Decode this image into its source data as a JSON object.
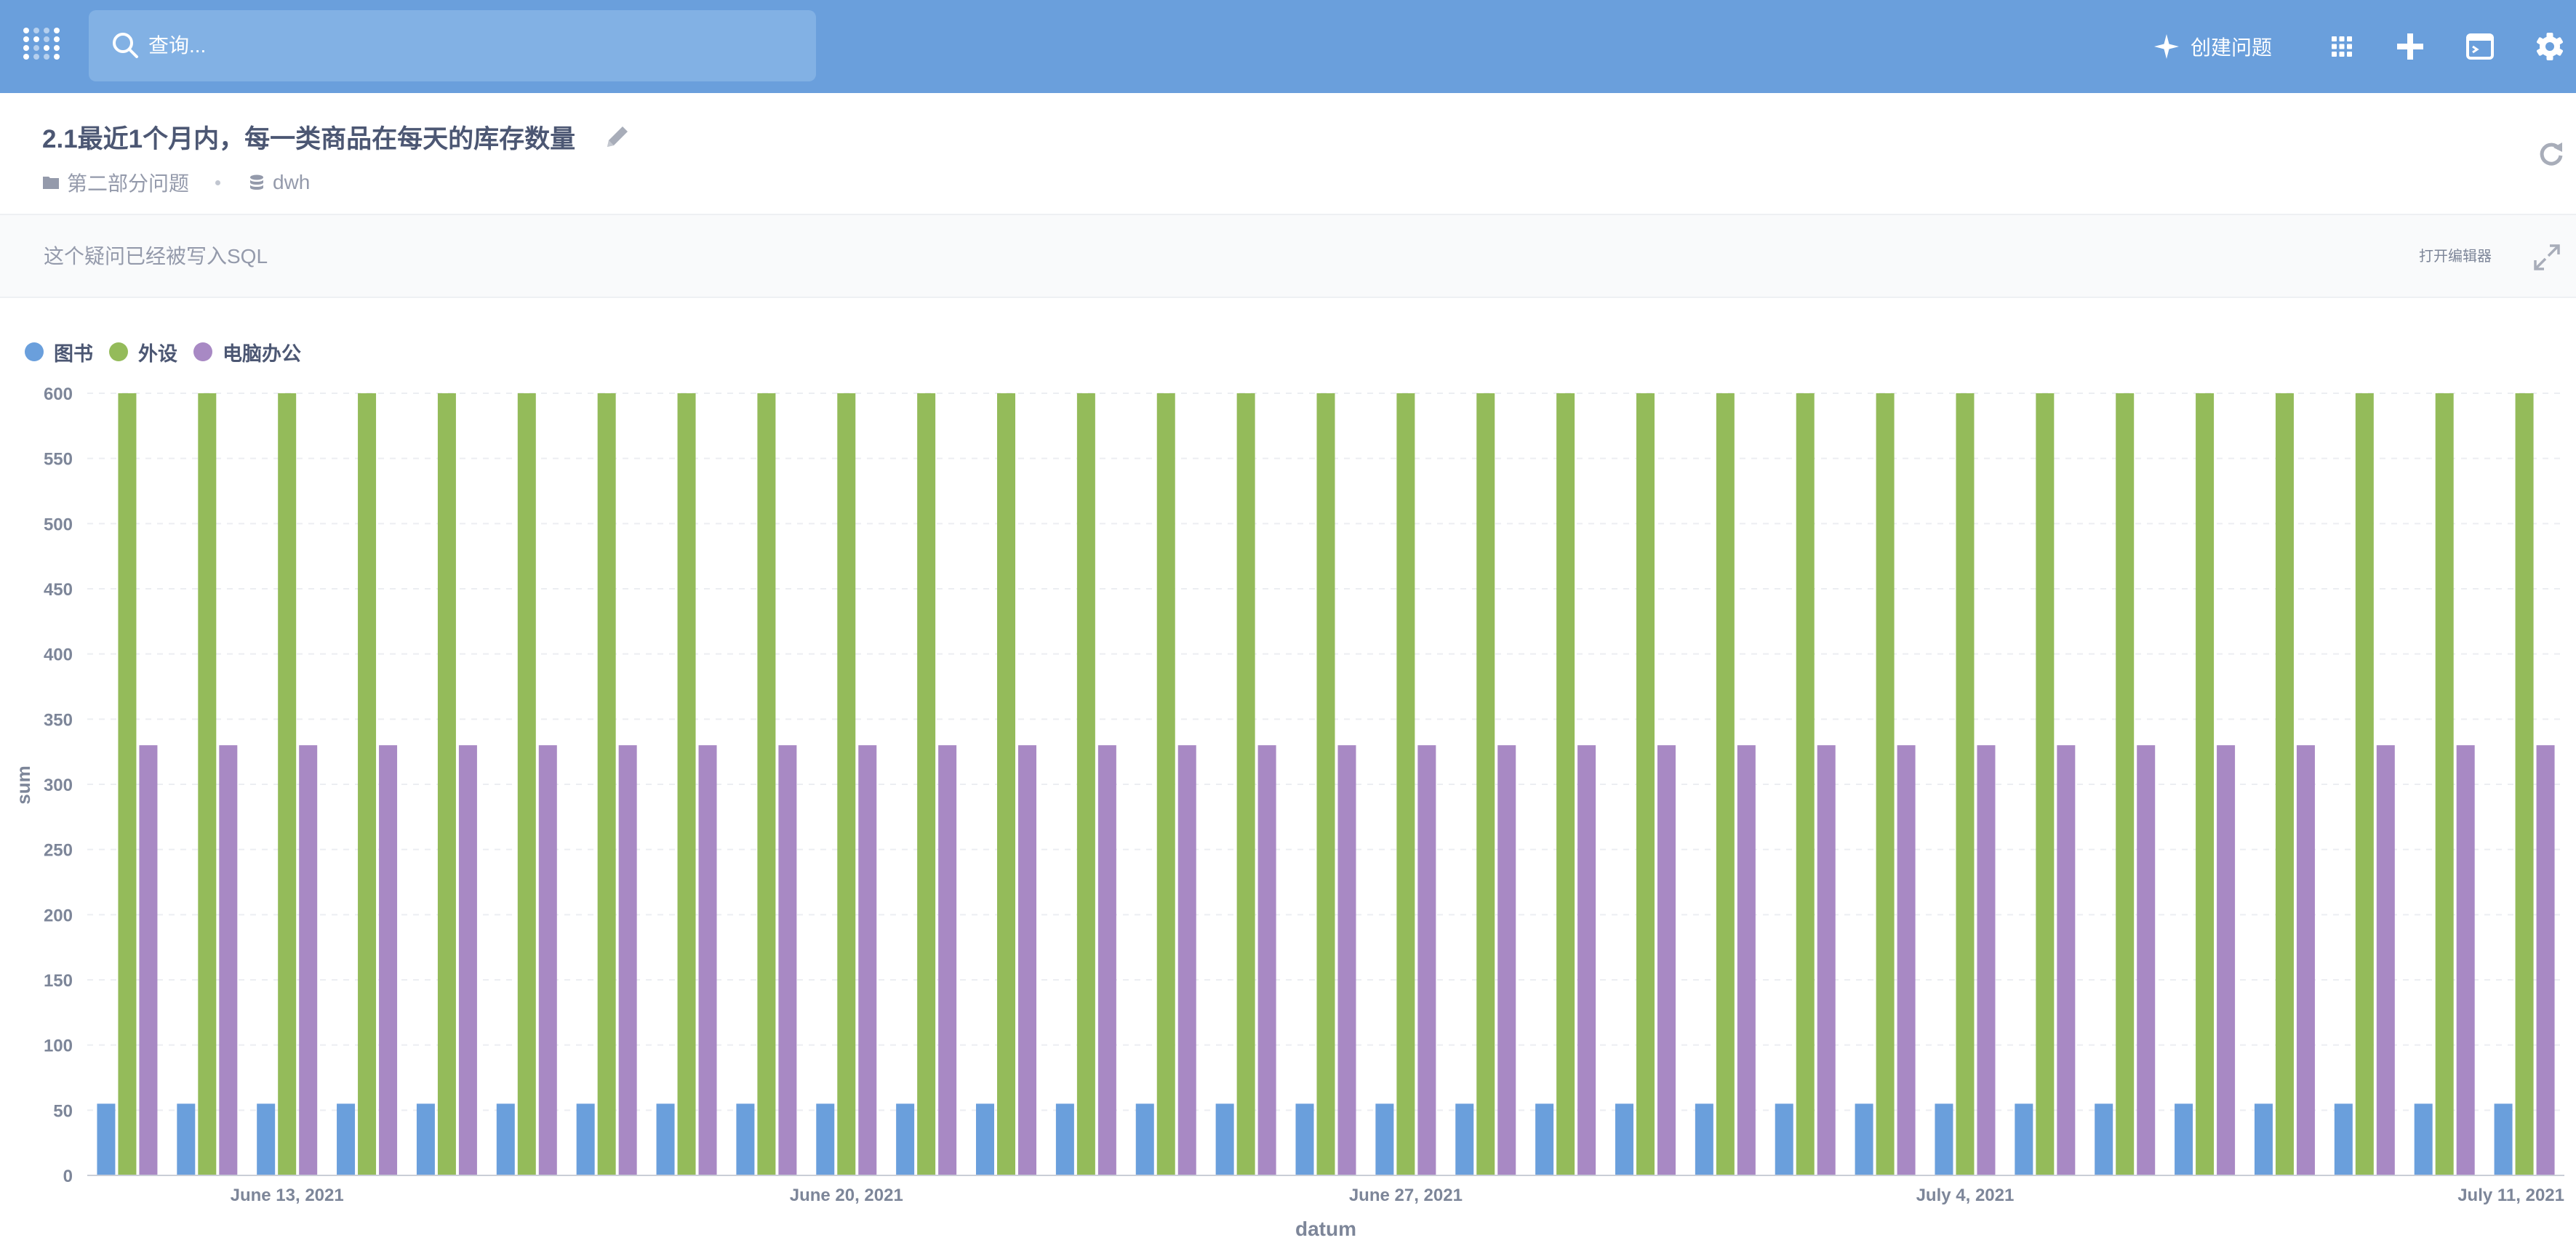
{
  "nav": {
    "search_placeholder": "查询...",
    "create_question_label": "创建问题"
  },
  "question": {
    "title": "2.1最近1个月内，每一类商品在每天的库存数量",
    "collection": "第二部分问题",
    "database": "dwh"
  },
  "notice": {
    "text": "这个疑问已经被写入SQL",
    "open_editor_label": "打开编辑器"
  },
  "icons": {
    "logo": "metabase-logo-icon",
    "search": "search-icon",
    "create": "sparkle-icon",
    "browse": "grid-icon",
    "new": "plus-icon",
    "sql": "terminal-icon",
    "settings": "gear-icon",
    "edit": "pencil-icon",
    "collection": "folder-icon",
    "database": "database-icon",
    "refresh": "refresh-icon",
    "expand": "expand-icon"
  },
  "colors": {
    "brand": "#6a9fdc",
    "series_books": "#6a9fdc",
    "series_peripherals": "#94bb5a",
    "series_computer_office": "#a889c4"
  },
  "chart_data": {
    "type": "bar",
    "xlabel": "datum",
    "ylabel": "sum",
    "ylim": [
      0,
      600
    ],
    "y_ticks": [
      0,
      50,
      100,
      150,
      200,
      250,
      300,
      350,
      400,
      450,
      500,
      550,
      600
    ],
    "x_start": "2021-06-11",
    "x_end": "2021-07-11",
    "x_tick_labels": [
      {
        "date": "2021-06-13",
        "label": "June 13, 2021"
      },
      {
        "date": "2021-06-20",
        "label": "June 20, 2021"
      },
      {
        "date": "2021-06-27",
        "label": "June 27, 2021"
      },
      {
        "date": "2021-07-04",
        "label": "July 4, 2021"
      },
      {
        "date": "2021-07-11",
        "label": "July 11, 2021"
      }
    ],
    "grid": true,
    "legend_position": "top-left",
    "series": [
      {
        "name": "图书",
        "color": "#6a9fdc",
        "value": 55
      },
      {
        "name": "外设",
        "color": "#94bb5a",
        "value": 600
      },
      {
        "name": "电脑办公",
        "color": "#a889c4",
        "value": 330
      }
    ]
  }
}
